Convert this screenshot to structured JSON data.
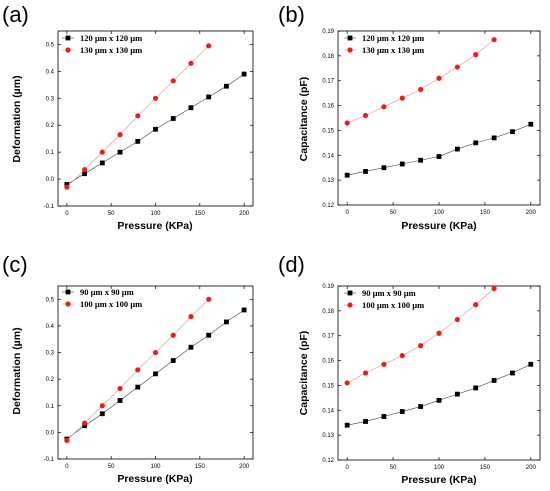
{
  "chart_data": [
    {
      "type": "line",
      "panel_label": "(a)",
      "xlabel": "Pressure (KPa)",
      "ylabel": "Deformation (µm)",
      "xlim": [
        -10,
        210
      ],
      "ylim": [
        -0.1,
        0.55
      ],
      "xticks": [
        0,
        50,
        100,
        150,
        200
      ],
      "yticks": [
        -0.1,
        0.0,
        0.1,
        0.2,
        0.3,
        0.4,
        0.5
      ],
      "ytick_decimals": 1,
      "legend_position": "top-left",
      "series": [
        {
          "name": "120 µm x 120 µm",
          "marker": "square",
          "color": "#000000",
          "x": [
            0,
            20,
            40,
            60,
            80,
            100,
            120,
            140,
            160,
            180,
            200
          ],
          "y": [
            -0.02,
            0.02,
            0.06,
            0.1,
            0.14,
            0.185,
            0.225,
            0.265,
            0.305,
            0.345,
            0.39
          ]
        },
        {
          "name": "130 µm x 130 µm",
          "marker": "circle",
          "color": "#e8201b",
          "x": [
            0,
            20,
            40,
            60,
            80,
            100,
            120,
            140,
            160
          ],
          "y": [
            -0.03,
            0.035,
            0.1,
            0.165,
            0.235,
            0.3,
            0.365,
            0.43,
            0.495
          ]
        }
      ]
    },
    {
      "type": "line",
      "panel_label": "(b)",
      "xlabel": "Pressure (KPa)",
      "ylabel": "Capacitance (pF)",
      "xlim": [
        -10,
        210
      ],
      "ylim": [
        0.12,
        0.19
      ],
      "xticks": [
        0,
        50,
        100,
        150,
        200
      ],
      "yticks": [
        0.12,
        0.13,
        0.14,
        0.15,
        0.16,
        0.17,
        0.18,
        0.19
      ],
      "ytick_decimals": 2,
      "legend_position": "top-left",
      "series": [
        {
          "name": "120 µm x 120 µm",
          "marker": "square",
          "color": "#000000",
          "x": [
            0,
            20,
            40,
            60,
            80,
            100,
            120,
            140,
            160,
            180,
            200
          ],
          "y": [
            0.132,
            0.1335,
            0.135,
            0.1365,
            0.138,
            0.1395,
            0.1425,
            0.145,
            0.147,
            0.1495,
            0.1525
          ]
        },
        {
          "name": "130 µm x 130 µm",
          "marker": "circle",
          "color": "#e8201b",
          "x": [
            0,
            20,
            40,
            60,
            80,
            100,
            120,
            140,
            160
          ],
          "y": [
            0.153,
            0.156,
            0.1595,
            0.163,
            0.1665,
            0.171,
            0.1755,
            0.1805,
            0.1865
          ]
        }
      ]
    },
    {
      "type": "line",
      "panel_label": "(c)",
      "xlabel": "Pressure (KPa)",
      "ylabel": "Deformation (µm)",
      "xlim": [
        -10,
        210
      ],
      "ylim": [
        -0.1,
        0.55
      ],
      "xticks": [
        0,
        50,
        100,
        150,
        200
      ],
      "yticks": [
        -0.1,
        0.0,
        0.1,
        0.2,
        0.3,
        0.4,
        0.5
      ],
      "ytick_decimals": 1,
      "legend_position": "top-left",
      "series": [
        {
          "name": "90 µm x 90 µm",
          "marker": "square",
          "color": "#000000",
          "x": [
            0,
            20,
            40,
            60,
            80,
            100,
            120,
            140,
            160,
            180,
            200
          ],
          "y": [
            -0.025,
            0.025,
            0.07,
            0.12,
            0.17,
            0.22,
            0.27,
            0.32,
            0.365,
            0.415,
            0.46
          ]
        },
        {
          "name": "100 µm x 100 µm",
          "marker": "circle",
          "color": "#e8201b",
          "x": [
            0,
            20,
            40,
            60,
            80,
            100,
            120,
            140,
            160
          ],
          "y": [
            -0.03,
            0.035,
            0.1,
            0.165,
            0.235,
            0.3,
            0.365,
            0.435,
            0.5
          ]
        }
      ]
    },
    {
      "type": "line",
      "panel_label": "(d)",
      "xlabel": "Pressure (KPa)",
      "ylabel": "Capacitance (pF)",
      "xlim": [
        -10,
        210
      ],
      "ylim": [
        0.12,
        0.19
      ],
      "xticks": [
        0,
        50,
        100,
        150,
        200
      ],
      "yticks": [
        0.12,
        0.13,
        0.14,
        0.15,
        0.16,
        0.17,
        0.18,
        0.19
      ],
      "ytick_decimals": 2,
      "legend_position": "top-left",
      "series": [
        {
          "name": "90 µm x 90 µm",
          "marker": "square",
          "color": "#000000",
          "x": [
            0,
            20,
            40,
            60,
            80,
            100,
            120,
            140,
            160,
            180,
            200
          ],
          "y": [
            0.134,
            0.1355,
            0.1375,
            0.1395,
            0.1415,
            0.144,
            0.1465,
            0.149,
            0.152,
            0.155,
            0.1585
          ]
        },
        {
          "name": "100 µm x 100 µm",
          "marker": "circle",
          "color": "#e8201b",
          "x": [
            0,
            20,
            40,
            60,
            80,
            100,
            120,
            140,
            160
          ],
          "y": [
            0.151,
            0.155,
            0.1585,
            0.162,
            0.166,
            0.171,
            0.1765,
            0.1825,
            0.189
          ]
        }
      ]
    }
  ]
}
